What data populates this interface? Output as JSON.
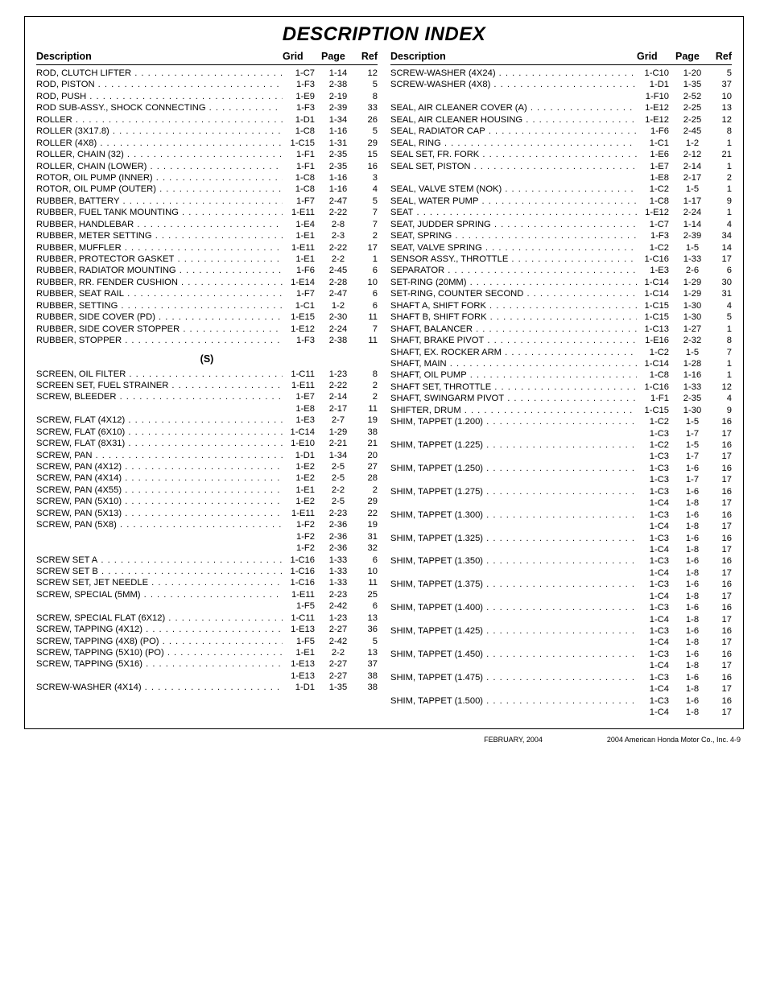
{
  "title": "DESCRIPTION INDEX",
  "headers": {
    "desc": "Description",
    "grid": "Grid",
    "page": "Page",
    "ref": "Ref"
  },
  "left": [
    {
      "d": "ROD, CLUTCH LIFTER",
      "g": "1-C7",
      "p": "1-14",
      "r": "12"
    },
    {
      "d": "ROD, PISTON",
      "g": "1-F3",
      "p": "2-38",
      "r": "5"
    },
    {
      "d": "ROD, PUSH",
      "g": "1-E9",
      "p": "2-19",
      "r": "8"
    },
    {
      "d": "ROD SUB-ASSY., SHOCK CONNECTING",
      "g": "1-F3",
      "p": "2-39",
      "r": "33"
    },
    {
      "d": "ROLLER",
      "g": "1-D1",
      "p": "1-34",
      "r": "26"
    },
    {
      "d": "ROLLER (3X17.8)",
      "g": "1-C8",
      "p": "1-16",
      "r": "5"
    },
    {
      "d": "ROLLER (4X8)",
      "g": "1-C15",
      "p": "1-31",
      "r": "29"
    },
    {
      "d": "ROLLER, CHAIN (32)",
      "g": "1-F1",
      "p": "2-35",
      "r": "15"
    },
    {
      "d": "ROLLER, CHAIN (LOWER)",
      "g": "1-F1",
      "p": "2-35",
      "r": "16"
    },
    {
      "d": "ROTOR, OIL PUMP (INNER)",
      "g": "1-C8",
      "p": "1-16",
      "r": "3"
    },
    {
      "d": "ROTOR, OIL PUMP (OUTER)",
      "g": "1-C8",
      "p": "1-16",
      "r": "4"
    },
    {
      "d": "RUBBER, BATTERY",
      "g": "1-F7",
      "p": "2-47",
      "r": "5"
    },
    {
      "d": "RUBBER, FUEL TANK MOUNTING",
      "g": "1-E11",
      "p": "2-22",
      "r": "7"
    },
    {
      "d": "RUBBER, HANDLEBAR",
      "g": "1-E4",
      "p": "2-8",
      "r": "7"
    },
    {
      "d": "RUBBER, METER SETTING",
      "g": "1-E1",
      "p": "2-3",
      "r": "2"
    },
    {
      "d": "RUBBER, MUFFLER",
      "g": "1-E11",
      "p": "2-22",
      "r": "17"
    },
    {
      "d": "RUBBER, PROTECTOR GASKET",
      "g": "1-E1",
      "p": "2-2",
      "r": "1"
    },
    {
      "d": "RUBBER, RADIATOR MOUNTING",
      "g": "1-F6",
      "p": "2-45",
      "r": "6"
    },
    {
      "d": "RUBBER, RR. FENDER CUSHION",
      "g": "1-E14",
      "p": "2-28",
      "r": "10"
    },
    {
      "d": "RUBBER, SEAT RAIL",
      "g": "1-F7",
      "p": "2-47",
      "r": "6"
    },
    {
      "d": "RUBBER, SETTING",
      "g": "1-C1",
      "p": "1-2",
      "r": "6"
    },
    {
      "d": "RUBBER, SIDE COVER (PD)",
      "g": "1-E15",
      "p": "2-30",
      "r": "11"
    },
    {
      "d": "RUBBER, SIDE COVER STOPPER",
      "g": "1-E12",
      "p": "2-24",
      "r": "7"
    },
    {
      "d": "RUBBER, STOPPER",
      "g": "1-F3",
      "p": "2-38",
      "r": "11"
    },
    {
      "section": "(S)"
    },
    {
      "d": "SCREEN, OIL FILTER",
      "g": "1-C11",
      "p": "1-23",
      "r": "8"
    },
    {
      "d": "SCREEN SET, FUEL STRAINER",
      "g": "1-E11",
      "p": "2-22",
      "r": "2"
    },
    {
      "d": "SCREW, BLEEDER",
      "g": "1-E7",
      "p": "2-14",
      "r": "2"
    },
    {
      "d": "",
      "g": "1-E8",
      "p": "2-17",
      "r": "11",
      "nodots": true
    },
    {
      "d": "SCREW, FLAT (4X12)",
      "g": "1-E3",
      "p": "2-7",
      "r": "19"
    },
    {
      "d": "SCREW, FLAT (6X10)",
      "g": "1-C14",
      "p": "1-29",
      "r": "38"
    },
    {
      "d": "SCREW, FLAT (8X31)",
      "g": "1-E10",
      "p": "2-21",
      "r": "21"
    },
    {
      "d": "SCREW, PAN",
      "g": "1-D1",
      "p": "1-34",
      "r": "20"
    },
    {
      "d": "SCREW, PAN (4X12)",
      "g": "1-E2",
      "p": "2-5",
      "r": "27"
    },
    {
      "d": "SCREW, PAN (4X14)",
      "g": "1-E2",
      "p": "2-5",
      "r": "28"
    },
    {
      "d": "SCREW, PAN (4X55)",
      "g": "1-E1",
      "p": "2-2",
      "r": "2"
    },
    {
      "d": "SCREW, PAN (5X10)",
      "g": "1-E2",
      "p": "2-5",
      "r": "29"
    },
    {
      "d": "SCREW, PAN (5X13)",
      "g": "1-E11",
      "p": "2-23",
      "r": "22"
    },
    {
      "d": "SCREW, PAN (5X8)",
      "g": "1-F2",
      "p": "2-36",
      "r": "19"
    },
    {
      "d": "",
      "g": "1-F2",
      "p": "2-36",
      "r": "31",
      "nodots": true
    },
    {
      "d": "",
      "g": "1-F2",
      "p": "2-36",
      "r": "32",
      "nodots": true
    },
    {
      "d": "SCREW SET A",
      "g": "1-C16",
      "p": "1-33",
      "r": "6"
    },
    {
      "d": "SCREW SET B",
      "g": "1-C16",
      "p": "1-33",
      "r": "10"
    },
    {
      "d": "SCREW SET, JET NEEDLE",
      "g": "1-C16",
      "p": "1-33",
      "r": "11"
    },
    {
      "d": "SCREW, SPECIAL (5MM)",
      "g": "1-E11",
      "p": "2-23",
      "r": "25"
    },
    {
      "d": "",
      "g": "1-F5",
      "p": "2-42",
      "r": "6",
      "nodots": true
    },
    {
      "d": "SCREW, SPECIAL FLAT (6X12)",
      "g": "1-C11",
      "p": "1-23",
      "r": "13"
    },
    {
      "d": "SCREW, TAPPING (4X12)",
      "g": "1-E13",
      "p": "2-27",
      "r": "36"
    },
    {
      "d": "SCREW, TAPPING (4X8) (PO)",
      "g": "1-F5",
      "p": "2-42",
      "r": "5"
    },
    {
      "d": "SCREW, TAPPING (5X10) (PO)",
      "g": "1-E1",
      "p": "2-2",
      "r": "13"
    },
    {
      "d": "SCREW, TAPPING (5X16)",
      "g": "1-E13",
      "p": "2-27",
      "r": "37"
    },
    {
      "d": "",
      "g": "1-E13",
      "p": "2-27",
      "r": "38",
      "nodots": true
    },
    {
      "d": "SCREW-WASHER (4X14)",
      "g": "1-D1",
      "p": "1-35",
      "r": "38"
    }
  ],
  "right": [
    {
      "d": "SCREW-WASHER (4X24)",
      "g": "1-C10",
      "p": "1-20",
      "r": "5"
    },
    {
      "d": "SCREW-WASHER (4X8)",
      "g": "1-D1",
      "p": "1-35",
      "r": "37"
    },
    {
      "d": "",
      "g": "1-F10",
      "p": "2-52",
      "r": "10",
      "nodots": true
    },
    {
      "d": "SEAL, AIR CLEANER COVER (A)",
      "g": "1-E12",
      "p": "2-25",
      "r": "13"
    },
    {
      "d": "SEAL, AIR CLEANER HOUSING",
      "g": "1-E12",
      "p": "2-25",
      "r": "12"
    },
    {
      "d": "SEAL, RADIATOR CAP",
      "g": "1-F6",
      "p": "2-45",
      "r": "8"
    },
    {
      "d": "SEAL, RING",
      "g": "1-C1",
      "p": "1-2",
      "r": "1"
    },
    {
      "d": "SEAL SET, FR. FORK",
      "g": "1-E6",
      "p": "2-12",
      "r": "21"
    },
    {
      "d": "SEAL SET, PISTON",
      "g": "1-E7",
      "p": "2-14",
      "r": "1"
    },
    {
      "d": "",
      "g": "1-E8",
      "p": "2-17",
      "r": "2",
      "nodots": true
    },
    {
      "d": "SEAL, VALVE STEM (NOK)",
      "g": "1-C2",
      "p": "1-5",
      "r": "1"
    },
    {
      "d": "SEAL, WATER PUMP",
      "g": "1-C8",
      "p": "1-17",
      "r": "9"
    },
    {
      "d": "SEAT",
      "g": "1-E12",
      "p": "2-24",
      "r": "1"
    },
    {
      "d": "SEAT, JUDDER SPRING",
      "g": "1-C7",
      "p": "1-14",
      "r": "4"
    },
    {
      "d": "SEAT, SPRING",
      "g": "1-F3",
      "p": "2-39",
      "r": "34"
    },
    {
      "d": "SEAT, VALVE SPRING",
      "g": "1-C2",
      "p": "1-5",
      "r": "14"
    },
    {
      "d": "SENSOR ASSY., THROTTLE",
      "g": "1-C16",
      "p": "1-33",
      "r": "17"
    },
    {
      "d": "SEPARATOR",
      "g": "1-E3",
      "p": "2-6",
      "r": "6"
    },
    {
      "d": "SET-RING (20MM)",
      "g": "1-C14",
      "p": "1-29",
      "r": "30"
    },
    {
      "d": "SET-RING, COUNTER SECOND",
      "g": "1-C14",
      "p": "1-29",
      "r": "31"
    },
    {
      "d": "SHAFT A, SHIFT FORK",
      "g": "1-C15",
      "p": "1-30",
      "r": "4"
    },
    {
      "d": "SHAFT B, SHIFT FORK",
      "g": "1-C15",
      "p": "1-30",
      "r": "5"
    },
    {
      "d": "SHAFT, BALANCER",
      "g": "1-C13",
      "p": "1-27",
      "r": "1"
    },
    {
      "d": "SHAFT, BRAKE PIVOT",
      "g": "1-E16",
      "p": "2-32",
      "r": "8"
    },
    {
      "d": "SHAFT, EX. ROCKER ARM",
      "g": "1-C2",
      "p": "1-5",
      "r": "7"
    },
    {
      "d": "SHAFT, MAIN",
      "g": "1-C14",
      "p": "1-28",
      "r": "1"
    },
    {
      "d": "SHAFT, OIL PUMP",
      "g": "1-C8",
      "p": "1-16",
      "r": "1"
    },
    {
      "d": "SHAFT SET, THROTTLE",
      "g": "1-C16",
      "p": "1-33",
      "r": "12"
    },
    {
      "d": "SHAFT, SWINGARM PIVOT",
      "g": "1-F1",
      "p": "2-35",
      "r": "4"
    },
    {
      "d": "SHIFTER, DRUM",
      "g": "1-C15",
      "p": "1-30",
      "r": "9"
    },
    {
      "d": "SHIM, TAPPET (1.200)",
      "g": "1-C2",
      "p": "1-5",
      "r": "16"
    },
    {
      "d": "",
      "g": "1-C3",
      "p": "1-7",
      "r": "17",
      "nodots": true
    },
    {
      "d": "SHIM, TAPPET (1.225)",
      "g": "1-C2",
      "p": "1-5",
      "r": "16"
    },
    {
      "d": "",
      "g": "1-C3",
      "p": "1-7",
      "r": "17",
      "nodots": true
    },
    {
      "d": "SHIM, TAPPET (1.250)",
      "g": "1-C3",
      "p": "1-6",
      "r": "16"
    },
    {
      "d": "",
      "g": "1-C3",
      "p": "1-7",
      "r": "17",
      "nodots": true
    },
    {
      "d": "SHIM, TAPPET (1.275)",
      "g": "1-C3",
      "p": "1-6",
      "r": "16"
    },
    {
      "d": "",
      "g": "1-C4",
      "p": "1-8",
      "r": "17",
      "nodots": true
    },
    {
      "d": "SHIM, TAPPET (1.300)",
      "g": "1-C3",
      "p": "1-6",
      "r": "16"
    },
    {
      "d": "",
      "g": "1-C4",
      "p": "1-8",
      "r": "17",
      "nodots": true
    },
    {
      "d": "SHIM, TAPPET (1.325)",
      "g": "1-C3",
      "p": "1-6",
      "r": "16"
    },
    {
      "d": "",
      "g": "1-C4",
      "p": "1-8",
      "r": "17",
      "nodots": true
    },
    {
      "d": "SHIM, TAPPET (1.350)",
      "g": "1-C3",
      "p": "1-6",
      "r": "16"
    },
    {
      "d": "",
      "g": "1-C4",
      "p": "1-8",
      "r": "17",
      "nodots": true
    },
    {
      "d": "SHIM, TAPPET (1.375)",
      "g": "1-C3",
      "p": "1-6",
      "r": "16"
    },
    {
      "d": "",
      "g": "1-C4",
      "p": "1-8",
      "r": "17",
      "nodots": true
    },
    {
      "d": "SHIM, TAPPET (1.400)",
      "g": "1-C3",
      "p": "1-6",
      "r": "16"
    },
    {
      "d": "",
      "g": "1-C4",
      "p": "1-8",
      "r": "17",
      "nodots": true
    },
    {
      "d": "SHIM, TAPPET (1.425)",
      "g": "1-C3",
      "p": "1-6",
      "r": "16"
    },
    {
      "d": "",
      "g": "1-C4",
      "p": "1-8",
      "r": "17",
      "nodots": true
    },
    {
      "d": "SHIM, TAPPET (1.450)",
      "g": "1-C3",
      "p": "1-6",
      "r": "16"
    },
    {
      "d": "",
      "g": "1-C4",
      "p": "1-8",
      "r": "17",
      "nodots": true
    },
    {
      "d": "SHIM, TAPPET (1.475)",
      "g": "1-C3",
      "p": "1-6",
      "r": "16"
    },
    {
      "d": "",
      "g": "1-C4",
      "p": "1-8",
      "r": "17",
      "nodots": true
    },
    {
      "d": "SHIM, TAPPET (1.500)",
      "g": "1-C3",
      "p": "1-6",
      "r": "16"
    },
    {
      "d": "",
      "g": "1-C4",
      "p": "1-8",
      "r": "17",
      "nodots": true
    }
  ],
  "footer": {
    "left": "FEBRUARY, 2004",
    "right": "2004  American Honda Motor Co., Inc.    4-9"
  }
}
